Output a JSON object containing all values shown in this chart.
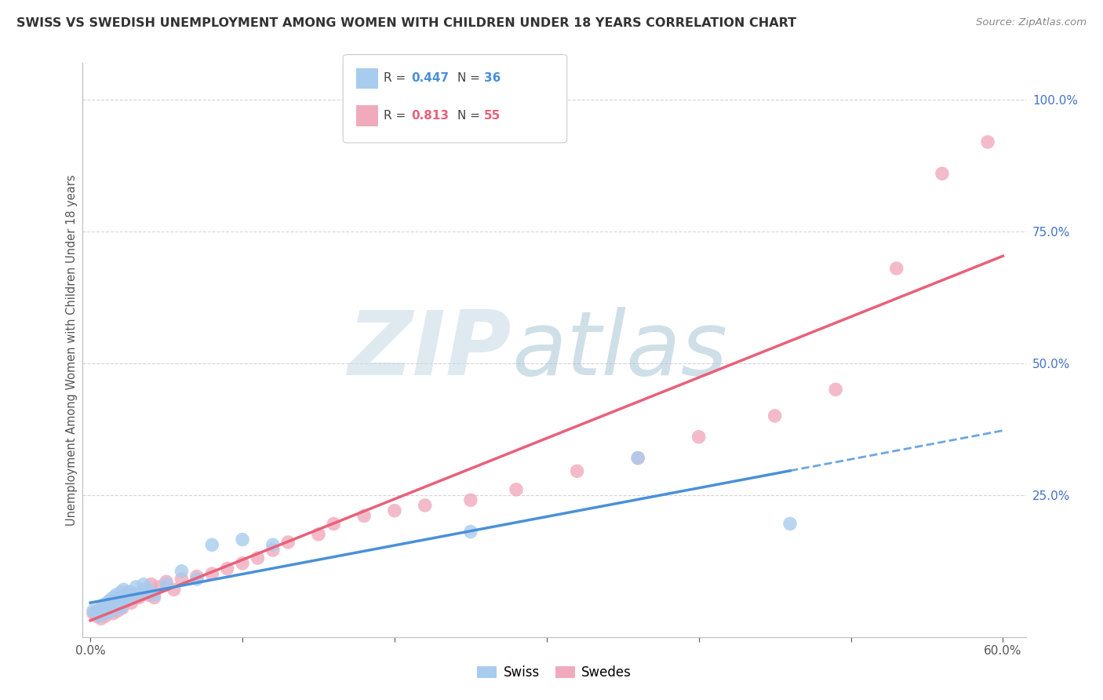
{
  "title": "SWISS VS SWEDISH UNEMPLOYMENT AMONG WOMEN WITH CHILDREN UNDER 18 YEARS CORRELATION CHART",
  "source": "Source: ZipAtlas.com",
  "ylabel": "Unemployment Among Women with Children Under 18 years",
  "xlim": [
    -0.005,
    0.615
  ],
  "ylim": [
    -0.02,
    1.07
  ],
  "R_swiss": 0.447,
  "N_swiss": 36,
  "R_swedes": 0.813,
  "N_swedes": 55,
  "swiss_scatter_color": "#A8CCEE",
  "swedes_scatter_color": "#F0AABC",
  "swiss_line_color": "#4A90D9",
  "swedes_line_color": "#E8607A",
  "swiss_scatter_x": [
    0.002,
    0.004,
    0.006,
    0.007,
    0.008,
    0.009,
    0.01,
    0.011,
    0.012,
    0.013,
    0.014,
    0.015,
    0.016,
    0.017,
    0.018,
    0.019,
    0.02,
    0.021,
    0.022,
    0.023,
    0.025,
    0.027,
    0.03,
    0.032,
    0.035,
    0.038,
    0.042,
    0.05,
    0.06,
    0.07,
    0.08,
    0.1,
    0.12,
    0.25,
    0.36,
    0.46
  ],
  "swiss_scatter_y": [
    0.03,
    0.025,
    0.02,
    0.035,
    0.04,
    0.03,
    0.025,
    0.045,
    0.035,
    0.05,
    0.03,
    0.055,
    0.04,
    0.06,
    0.045,
    0.035,
    0.065,
    0.04,
    0.07,
    0.05,
    0.055,
    0.065,
    0.075,
    0.06,
    0.08,
    0.07,
    0.06,
    0.08,
    0.105,
    0.09,
    0.155,
    0.165,
    0.155,
    0.18,
    0.32,
    0.195
  ],
  "swedes_scatter_x": [
    0.002,
    0.004,
    0.005,
    0.006,
    0.007,
    0.008,
    0.009,
    0.01,
    0.011,
    0.012,
    0.013,
    0.014,
    0.015,
    0.016,
    0.017,
    0.018,
    0.019,
    0.02,
    0.021,
    0.022,
    0.023,
    0.025,
    0.027,
    0.03,
    0.032,
    0.035,
    0.038,
    0.04,
    0.042,
    0.045,
    0.05,
    0.055,
    0.06,
    0.07,
    0.08,
    0.09,
    0.1,
    0.11,
    0.12,
    0.13,
    0.15,
    0.16,
    0.18,
    0.2,
    0.22,
    0.25,
    0.28,
    0.32,
    0.36,
    0.4,
    0.45,
    0.49,
    0.53,
    0.56,
    0.59
  ],
  "swedes_scatter_y": [
    0.025,
    0.02,
    0.03,
    0.025,
    0.015,
    0.035,
    0.03,
    0.02,
    0.04,
    0.03,
    0.035,
    0.045,
    0.025,
    0.05,
    0.04,
    0.03,
    0.055,
    0.045,
    0.035,
    0.06,
    0.05,
    0.065,
    0.045,
    0.06,
    0.055,
    0.07,
    0.06,
    0.08,
    0.055,
    0.075,
    0.085,
    0.07,
    0.09,
    0.095,
    0.1,
    0.11,
    0.12,
    0.13,
    0.145,
    0.16,
    0.175,
    0.195,
    0.21,
    0.22,
    0.23,
    0.24,
    0.26,
    0.295,
    0.32,
    0.36,
    0.4,
    0.45,
    0.68,
    0.86,
    0.92
  ],
  "legend_swiss": "Swiss",
  "legend_swedes": "Swedes",
  "background_color": "#FFFFFF",
  "grid_color": "#CCCCCC",
  "ytick_positions": [
    0.25,
    0.5,
    0.75,
    1.0
  ],
  "xtick_positions": [
    0.0,
    0.1,
    0.2,
    0.3,
    0.4,
    0.5,
    0.6
  ]
}
